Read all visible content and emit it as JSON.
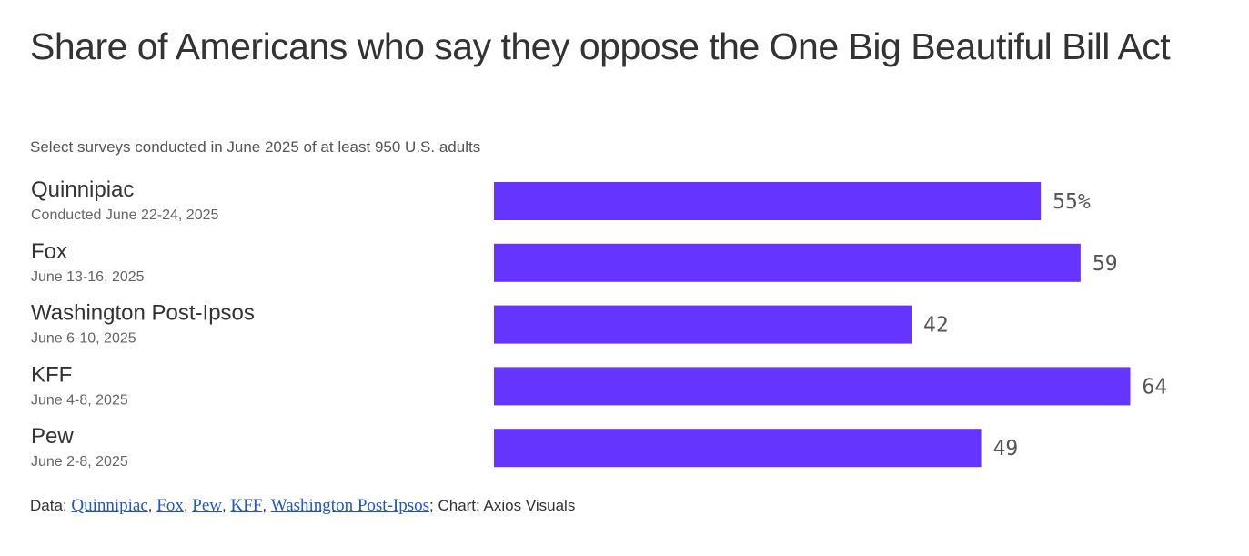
{
  "chart_data": {
    "type": "bar",
    "orientation": "horizontal",
    "title": "Share of Americans who say they oppose the One Big Beautiful Bill Act",
    "subtitle": "Select surveys conducted in June 2025 of at least 950 U.S. adults",
    "categories": [
      "Quinnipiac",
      "Fox",
      "Washington Post-Ipsos",
      "KFF",
      "Pew"
    ],
    "dates": [
      "Conducted June 22-24, 2025",
      "June 13-16, 2025",
      "June 6-10, 2025",
      "June 4-8, 2025",
      "June 2-8, 2025"
    ],
    "values": [
      55,
      59,
      42,
      64,
      49
    ],
    "value_labels": [
      "55%",
      "59",
      "42",
      "64",
      "49"
    ],
    "xlim": [
      0,
      100
    ],
    "grid": false,
    "legend": "none",
    "bar_color": "#6634ff"
  },
  "footer": {
    "prefix": "Data: ",
    "sources": [
      "Quinnipiac",
      "Fox",
      "Pew",
      "KFF",
      "Washington Post-Ipsos"
    ],
    "separator": ", ",
    "suffix": "; Chart: Axios Visuals"
  }
}
